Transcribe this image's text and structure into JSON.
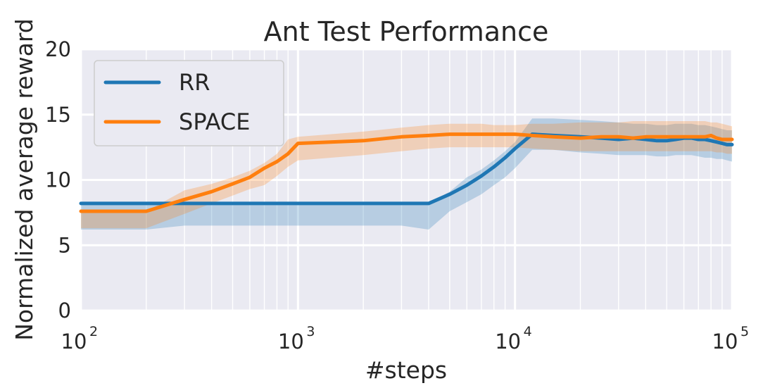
{
  "chart_data": {
    "type": "line",
    "title": "Ant Test Performance",
    "xlabel": "#steps",
    "ylabel": "Normalized average reward",
    "xscale": "log",
    "xlim": [
      100,
      100000
    ],
    "ylim": [
      0,
      20
    ],
    "x_ticks": [
      {
        "value": 100,
        "base": "10",
        "exp": "2"
      },
      {
        "value": 1000,
        "base": "10",
        "exp": "3"
      },
      {
        "value": 10000,
        "base": "10",
        "exp": "4"
      },
      {
        "value": 100000,
        "base": "10",
        "exp": "5"
      }
    ],
    "y_ticks": [
      {
        "value": 0,
        "label": "0"
      },
      {
        "value": 5,
        "label": "5"
      },
      {
        "value": 10,
        "label": "10"
      },
      {
        "value": 15,
        "label": "15"
      },
      {
        "value": 20,
        "label": "20"
      }
    ],
    "grid": true,
    "legend_position": "upper-left",
    "background": "#eaeaf2",
    "series": [
      {
        "name": "RR",
        "color": "#1f77b4",
        "x": [
          100,
          200,
          300,
          400,
          500,
          600,
          700,
          800,
          900,
          1000,
          2000,
          3000,
          4000,
          5000,
          6000,
          7000,
          8000,
          9000,
          10000,
          12000,
          15000,
          20000,
          25000,
          30000,
          35000,
          40000,
          45000,
          50000,
          55000,
          60000,
          65000,
          70000,
          75000,
          80000,
          85000,
          90000,
          95000,
          100000
        ],
        "mean": [
          8.2,
          8.2,
          8.2,
          8.2,
          8.2,
          8.2,
          8.2,
          8.2,
          8.2,
          8.2,
          8.2,
          8.2,
          8.2,
          8.9,
          9.6,
          10.3,
          11.0,
          11.7,
          12.4,
          13.5,
          13.4,
          13.3,
          13.2,
          13.1,
          13.2,
          13.1,
          13.0,
          13.0,
          13.1,
          13.2,
          13.2,
          13.1,
          13.1,
          13.0,
          12.9,
          12.8,
          12.7,
          12.7
        ],
        "lower": [
          6.2,
          6.2,
          6.5,
          6.5,
          6.5,
          6.5,
          6.5,
          6.5,
          6.5,
          6.5,
          6.5,
          6.5,
          6.2,
          7.6,
          8.3,
          8.9,
          9.6,
          10.2,
          10.9,
          12.3,
          12.3,
          12.1,
          12.0,
          11.9,
          11.9,
          11.9,
          11.8,
          11.8,
          11.9,
          11.9,
          11.9,
          11.8,
          11.7,
          11.7,
          11.6,
          11.6,
          11.5,
          11.4
        ],
        "upper": [
          8.2,
          8.2,
          8.2,
          8.2,
          8.2,
          8.2,
          8.2,
          8.2,
          8.2,
          8.2,
          8.2,
          8.2,
          8.2,
          9.1,
          10.2,
          10.8,
          11.5,
          12.2,
          12.9,
          14.7,
          14.7,
          14.6,
          14.5,
          14.4,
          14.3,
          14.3,
          14.2,
          14.2,
          14.3,
          14.3,
          14.3,
          14.2,
          14.2,
          14.1,
          14.0,
          13.9,
          13.8,
          13.8
        ]
      },
      {
        "name": "SPACE",
        "color": "#ff7f0e",
        "x": [
          100,
          200,
          300,
          400,
          500,
          600,
          700,
          800,
          900,
          1000,
          2000,
          3000,
          4000,
          5000,
          6000,
          7000,
          8000,
          9000,
          10000,
          12000,
          15000,
          20000,
          25000,
          30000,
          35000,
          40000,
          45000,
          50000,
          55000,
          60000,
          65000,
          70000,
          75000,
          80000,
          85000,
          90000,
          95000,
          100000
        ],
        "mean": [
          7.6,
          7.6,
          8.5,
          9.1,
          9.7,
          10.2,
          10.9,
          11.4,
          12.0,
          12.8,
          13.0,
          13.3,
          13.4,
          13.5,
          13.5,
          13.5,
          13.5,
          13.5,
          13.5,
          13.4,
          13.3,
          13.2,
          13.3,
          13.3,
          13.2,
          13.3,
          13.3,
          13.3,
          13.3,
          13.3,
          13.3,
          13.3,
          13.3,
          13.4,
          13.2,
          13.1,
          13.1,
          13.1
        ],
        "lower": [
          6.3,
          6.3,
          7.4,
          8.2,
          8.8,
          9.3,
          9.6,
          10.3,
          11.0,
          11.5,
          11.9,
          12.2,
          12.4,
          12.5,
          12.5,
          12.5,
          12.5,
          12.5,
          12.5,
          12.4,
          12.3,
          12.2,
          12.2,
          12.2,
          12.2,
          12.2,
          12.2,
          12.2,
          12.2,
          12.2,
          12.2,
          12.2,
          12.2,
          12.2,
          12.1,
          12.1,
          12.0,
          12.0
        ],
        "upper": [
          7.6,
          7.6,
          9.2,
          9.7,
          10.2,
          10.7,
          11.3,
          12.0,
          13.1,
          13.3,
          13.7,
          14.0,
          14.2,
          14.3,
          14.3,
          14.3,
          14.2,
          14.2,
          14.2,
          14.3,
          14.3,
          14.4,
          14.4,
          14.4,
          14.5,
          14.5,
          14.5,
          14.5,
          14.5,
          14.5,
          14.5,
          14.5,
          14.5,
          14.4,
          14.4,
          14.3,
          14.2,
          14.1
        ]
      }
    ]
  }
}
